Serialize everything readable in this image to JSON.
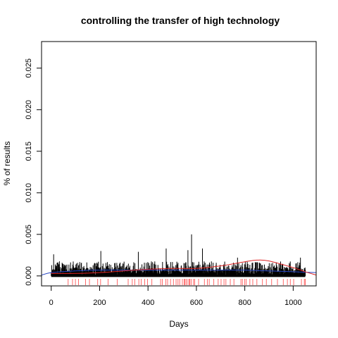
{
  "chart_data": {
    "type": "line",
    "title": "controlling the transfer of high technology",
    "xlabel": "Days",
    "ylabel": "% of results",
    "xlim": [
      -40,
      1095
    ],
    "ylim": [
      -0.0012,
      0.0282
    ],
    "x_ticks": [
      0,
      200,
      400,
      600,
      800,
      1000
    ],
    "x_tick_labels": [
      "0",
      "200",
      "400",
      "600",
      "800",
      "1000"
    ],
    "y_ticks": [
      0.0,
      0.005,
      0.01,
      0.015,
      0.02,
      0.025
    ],
    "y_tick_labels": [
      "0.000",
      "0.005",
      "0.010",
      "0.015",
      "0.020",
      "0.025"
    ],
    "series": [
      {
        "kind": "spikes",
        "color": "#000000",
        "x_range": [
          0,
          1050
        ],
        "baseline": 0.0,
        "typical_max": 0.0013,
        "peaks": [
          {
            "x": 580,
            "y": 0.005
          },
          {
            "x": 475,
            "y": 0.0033
          },
          {
            "x": 205,
            "y": 0.003
          },
          {
            "x": 565,
            "y": 0.0031
          },
          {
            "x": 625,
            "y": 0.0033
          },
          {
            "x": 10,
            "y": 0.0026
          },
          {
            "x": 360,
            "y": 0.0029
          },
          {
            "x": 770,
            "y": 0.0022
          },
          {
            "x": 1030,
            "y": 0.0022
          }
        ]
      },
      {
        "kind": "smooth",
        "color": "#2040c0",
        "x": [
          -40,
          0,
          100,
          200,
          300,
          400,
          500,
          600,
          700,
          800,
          900,
          1000,
          1095
        ],
        "y": [
          0.0001,
          0.0004,
          0.0006,
          0.0007,
          0.0007,
          0.0007,
          0.0007,
          0.0007,
          0.0007,
          0.0007,
          0.0006,
          0.0005,
          0.0004
        ]
      },
      {
        "kind": "smooth",
        "color": "#dd2222",
        "x": [
          0,
          100,
          200,
          300,
          400,
          500,
          600,
          700,
          800,
          850,
          900,
          1000,
          1050,
          1095
        ],
        "y": [
          0.0003,
          0.0003,
          0.0004,
          0.0006,
          0.0008,
          0.0009,
          0.0009,
          0.0012,
          0.0017,
          0.0019,
          0.0018,
          0.001,
          0.0005,
          0.0001
        ]
      }
    ],
    "rug": {
      "color": "#ff4444",
      "x": [
        70,
        88,
        100,
        113,
        142,
        158,
        192,
        204,
        235,
        273,
        318,
        335,
        345,
        362,
        372,
        386,
        398,
        416,
        452,
        459,
        474,
        481,
        493,
        505,
        516,
        524,
        531,
        542,
        549,
        553,
        558,
        565,
        571,
        573,
        579,
        588,
        593,
        609,
        633,
        645,
        653,
        672,
        690,
        702,
        714,
        722,
        740,
        755,
        784,
        790,
        800,
        806,
        821,
        833,
        850,
        873,
        889,
        911,
        935,
        959,
        976,
        988,
        1002,
        1034,
        1046,
        1050
      ]
    },
    "grid": false,
    "legend": "none"
  }
}
